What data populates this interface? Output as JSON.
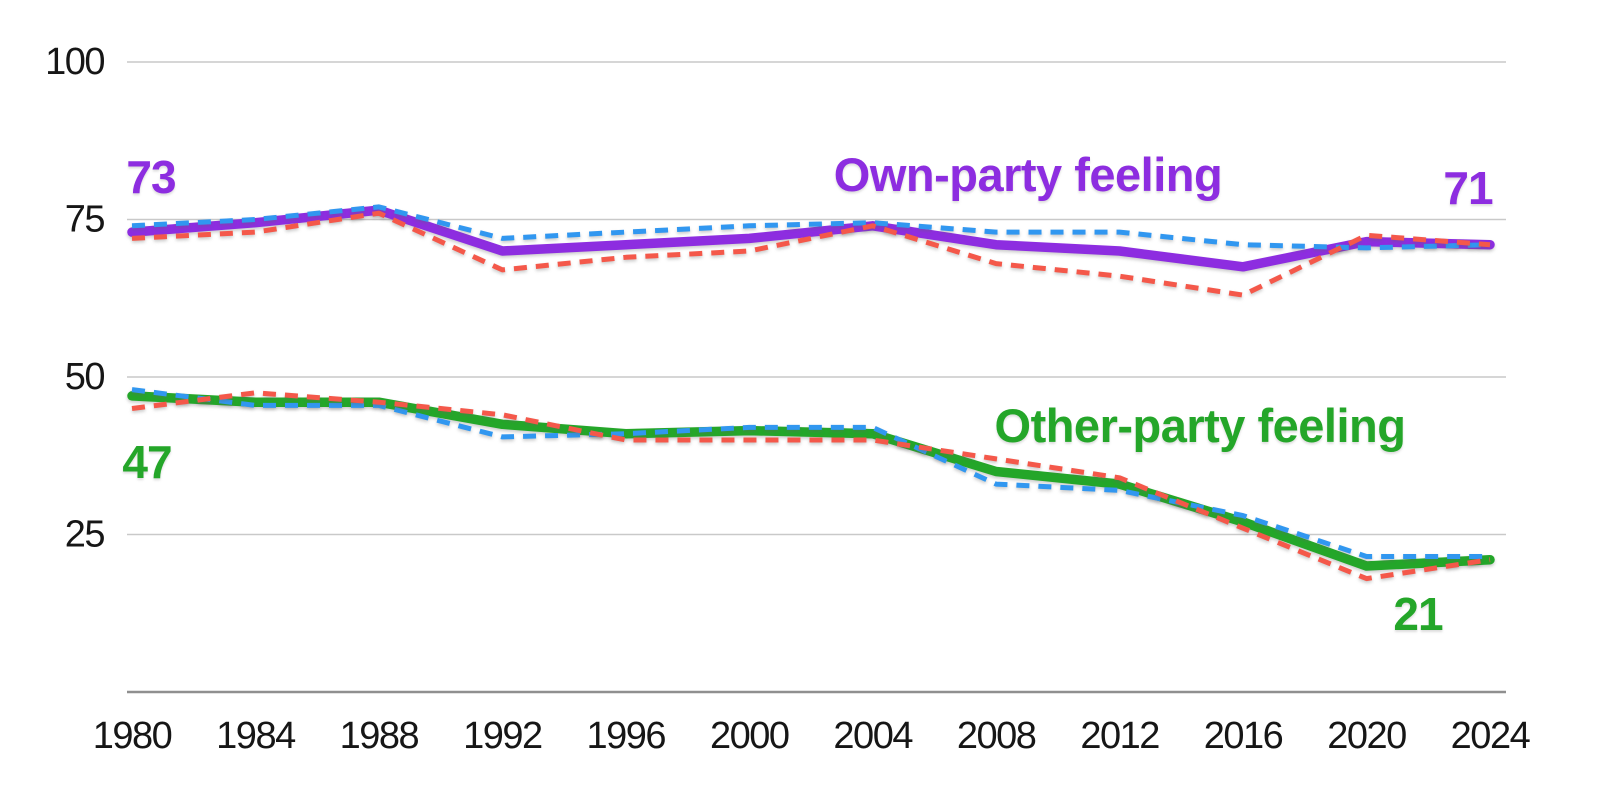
{
  "chart_data": {
    "type": "line",
    "title": "",
    "x_label": "",
    "y_label": "",
    "x": [
      1980,
      1984,
      1988,
      1992,
      1996,
      2000,
      2004,
      2008,
      2012,
      2016,
      2020,
      2024
    ],
    "y_ticks": [
      100,
      75,
      50,
      25
    ],
    "ylim": [
      0,
      100
    ],
    "xlim": [
      1980,
      2024
    ],
    "grid": true,
    "legend": "none",
    "series": [
      {
        "id": "own-party-overall",
        "name": "Own-party feeling (solid purple)",
        "style": "solid",
        "color_key": "purple",
        "values": [
          73,
          74.5,
          76.5,
          70,
          71,
          72,
          74,
          71,
          70,
          67.5,
          71.5,
          71
        ]
      },
      {
        "id": "own-party-dashed-blue",
        "name": "Own-party feeling (dashed blue)",
        "style": "dashed",
        "color_key": "blue",
        "values": [
          74,
          75,
          77,
          72,
          73,
          74,
          74.5,
          73,
          73,
          71,
          70.5,
          71
        ]
      },
      {
        "id": "own-party-dashed-red",
        "name": "Own-party feeling (dashed red)",
        "style": "dashed",
        "color_key": "red",
        "values": [
          72,
          73,
          76,
          67,
          69,
          70,
          74,
          68,
          66,
          63,
          72.5,
          71
        ]
      },
      {
        "id": "other-party-overall",
        "name": "Other-party feeling (solid green)",
        "style": "solid",
        "color_key": "green",
        "values": [
          47,
          46,
          46,
          42.5,
          41,
          41.5,
          41,
          35,
          33,
          27,
          20,
          21
        ]
      },
      {
        "id": "other-party-dashed-blue",
        "name": "Other-party feeling (dashed blue)",
        "style": "dashed",
        "color_key": "blue",
        "values": [
          48,
          45.5,
          45.5,
          40.5,
          41,
          42,
          42,
          33,
          32,
          28,
          21.5,
          21.5
        ]
      },
      {
        "id": "other-party-dashed-red",
        "name": "Other-party feeling (dashed red)",
        "style": "dashed",
        "color_key": "red",
        "values": [
          45,
          47.5,
          46,
          44,
          40,
          40,
          40,
          37,
          34,
          26,
          18,
          21
        ]
      }
    ],
    "annotations": {
      "own_label": "Own-party feeling",
      "other_label": "Other-party feeling",
      "own_start": "73",
      "own_end": "71",
      "other_start": "47",
      "other_end": "21"
    },
    "colors": {
      "purple": "#8d2de0",
      "green": "#24a629",
      "blue": "#3197f0",
      "red": "#f4584a",
      "gridline": "#c9c9c9",
      "axis_line": "#8f8f8f",
      "tick_text": "#161616"
    }
  }
}
